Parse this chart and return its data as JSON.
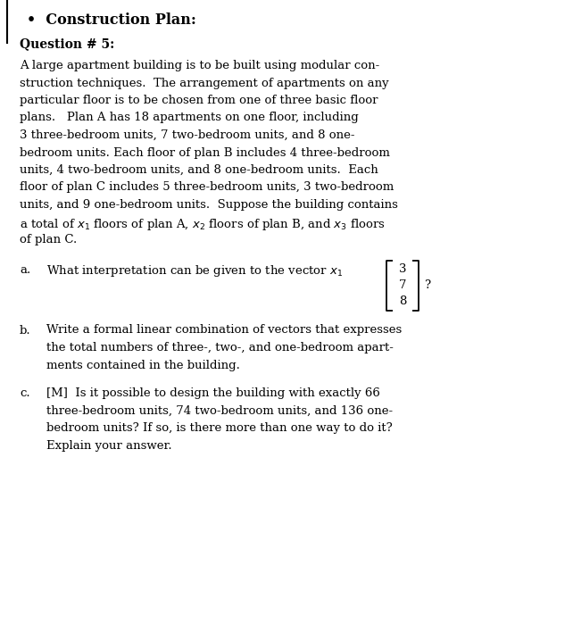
{
  "title_bullet": "•",
  "title": "Construction Plan:",
  "question_label": "Question # 5:",
  "para_lines": [
    "A large apartment building is to be built using modular con-",
    "struction techniques.  The arrangement of apartments on any",
    "particular floor is to be chosen from one of three basic floor",
    "plans.   Plan A has 18 apartments on one floor, including",
    "3 three-bedroom units, 7 two-bedroom units, and 8 one-",
    "bedroom units. Each floor of plan B includes 4 three-bedroom",
    "units, 4 two-bedroom units, and 8 one-bedroom units.  Each",
    "floor of plan C includes 5 three-bedroom units, 3 two-bedroom",
    "units, and 9 one-bedroom units.  Suppose the building contains",
    "a total of $x_1$ floors of plan A, $x_2$ floors of plan B, and $x_3$ floors",
    "of plan C."
  ],
  "part_a_label": "a.",
  "part_a_text": "What interpretation can be given to the vector $x_1$",
  "vector_values": [
    "3",
    "7",
    "8"
  ],
  "part_b_label": "b.",
  "part_b_lines": [
    "Write a formal linear combination of vectors that expresses",
    "the total numbers of three-, two-, and one-bedroom apart-",
    "ments contained in the building."
  ],
  "part_c_label": "c.",
  "part_c_lines": [
    "[M]  Is it possible to design the building with exactly 66",
    "three-bedroom units, 74 two-bedroom units, and 136 one-",
    "bedroom units? If so, is there more than one way to do it?",
    "Explain your answer."
  ],
  "bg_color": "#ffffff",
  "text_color": "#000000",
  "font_size_title": 11.5,
  "font_size_question": 10.0,
  "font_size_body": 9.5
}
